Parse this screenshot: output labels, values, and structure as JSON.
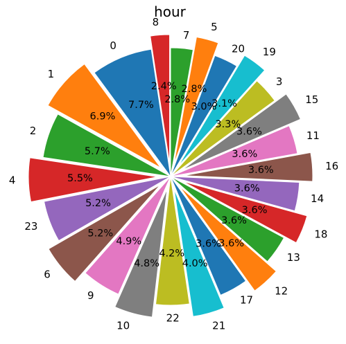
{
  "chart_data": {
    "type": "pie",
    "title": "hour",
    "start_angle_deg": 90,
    "direction": "counterclockwise",
    "label_format": "{value}%",
    "slices": [
      {
        "label": "8",
        "value": 2.4,
        "color": "#d62728",
        "exploded": true
      },
      {
        "label": "0",
        "value": 7.7,
        "color": "#1f77b4",
        "exploded": false
      },
      {
        "label": "1",
        "value": 6.9,
        "color": "#ff7f0e",
        "exploded": true
      },
      {
        "label": "2",
        "value": 5.7,
        "color": "#2ca02c",
        "exploded": false
      },
      {
        "label": "4",
        "value": 5.5,
        "color": "#d62728",
        "exploded": true
      },
      {
        "label": "23",
        "value": 5.2,
        "color": "#9467bd",
        "exploded": false
      },
      {
        "label": "6",
        "value": 5.2,
        "color": "#8c564b",
        "exploded": true
      },
      {
        "label": "9",
        "value": 4.9,
        "color": "#e377c2",
        "exploded": false
      },
      {
        "label": "10",
        "value": 4.8,
        "color": "#7f7f7f",
        "exploded": true
      },
      {
        "label": "22",
        "value": 4.2,
        "color": "#bcbd22",
        "exploded": false
      },
      {
        "label": "21",
        "value": 4.0,
        "color": "#17becf",
        "exploded": true
      },
      {
        "label": "17",
        "value": 3.6,
        "color": "#1f77b4",
        "exploded": false
      },
      {
        "label": "12",
        "value": 3.6,
        "color": "#ff7f0e",
        "exploded": true
      },
      {
        "label": "13",
        "value": 3.6,
        "color": "#2ca02c",
        "exploded": false
      },
      {
        "label": "18",
        "value": 3.6,
        "color": "#d62728",
        "exploded": true
      },
      {
        "label": "14",
        "value": 3.6,
        "color": "#9467bd",
        "exploded": false
      },
      {
        "label": "16",
        "value": 3.6,
        "color": "#8c564b",
        "exploded": true
      },
      {
        "label": "11",
        "value": 3.6,
        "color": "#e377c2",
        "exploded": false
      },
      {
        "label": "15",
        "value": 3.6,
        "color": "#7f7f7f",
        "exploded": true
      },
      {
        "label": "3",
        "value": 3.3,
        "color": "#bcbd22",
        "exploded": false
      },
      {
        "label": "19",
        "value": 3.1,
        "color": "#17becf",
        "exploded": true
      },
      {
        "label": "20",
        "value": 3.0,
        "color": "#1f77b4",
        "exploded": false
      },
      {
        "label": "5",
        "value": 2.8,
        "color": "#ff7f0e",
        "exploded": true
      },
      {
        "label": "7",
        "value": 2.8,
        "color": "#2ca02c",
        "exploded": false
      }
    ]
  }
}
